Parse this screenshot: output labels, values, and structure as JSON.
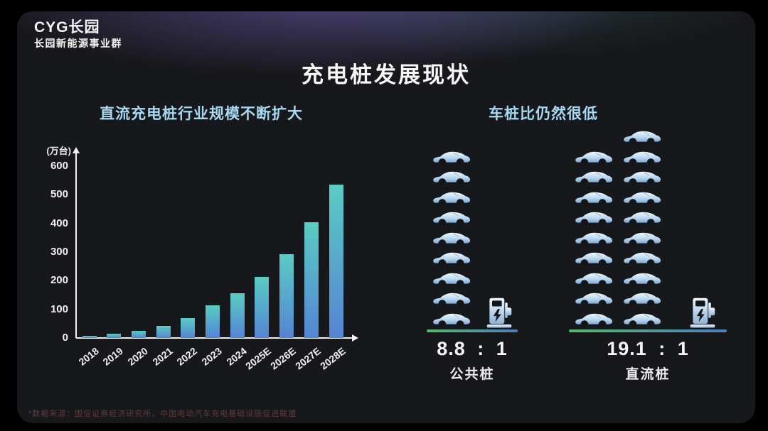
{
  "slide": {
    "logo": {
      "brand": "CYG长园",
      "subbrand": "长园新能源事业群"
    },
    "title": "充电桩发展现状",
    "left_panel": {
      "subtitle": "直流充电桩行业规模不断扩大"
    },
    "right_panel": {
      "subtitle": "车桩比仍然很低",
      "groups": [
        {
          "ratio": "8.8 : 1",
          "label": "公共桩",
          "car_count": 9,
          "pile_count": 1,
          "columns": [
            9
          ]
        },
        {
          "ratio": "19.1 : 1",
          "label": "直流桩",
          "car_count": 19,
          "pile_count": 1,
          "columns": [
            9,
            10
          ]
        }
      ]
    },
    "footnote": "*数据来源：国信证券经济研究所，中国电动汽车充电基础设施促进联盟"
  },
  "chart_data": {
    "type": "bar",
    "title": "直流充电桩行业规模不断扩大",
    "unit_label": "(万台)",
    "categories": [
      "2018",
      "2019",
      "2020",
      "2021",
      "2022",
      "2023",
      "2024",
      "2025E",
      "2026E",
      "2027E",
      "2028E"
    ],
    "values": [
      7,
      15,
      25,
      43,
      70,
      113,
      157,
      212,
      293,
      404,
      535
    ],
    "xlabel": "",
    "ylabel": "万台",
    "ylim": [
      0,
      600
    ],
    "yticks": [
      0,
      100,
      200,
      300,
      400,
      500,
      600
    ],
    "grid": false,
    "legend": false,
    "bar_gradient": [
      "#5accc3",
      "#5584d4"
    ]
  },
  "icons": {
    "car": "car-icon",
    "charging_pile": "charging-pile-icon"
  },
  "colors": {
    "background": "#000000",
    "slide_bg": "#17181b",
    "glow_purple": "#7660be",
    "accent_subtitle": "#a6d8f2",
    "title_text": "#f7f7f7",
    "bar_top": "#5accc3",
    "bar_bottom": "#5584d4",
    "axis": "#f2f2f2",
    "line_green": "#55b96d",
    "line_blue": "#4f7ec0",
    "car_light": "#eef7fd",
    "car_dark": "#7fa9d4",
    "footnote_text": "#5e3d3d"
  }
}
